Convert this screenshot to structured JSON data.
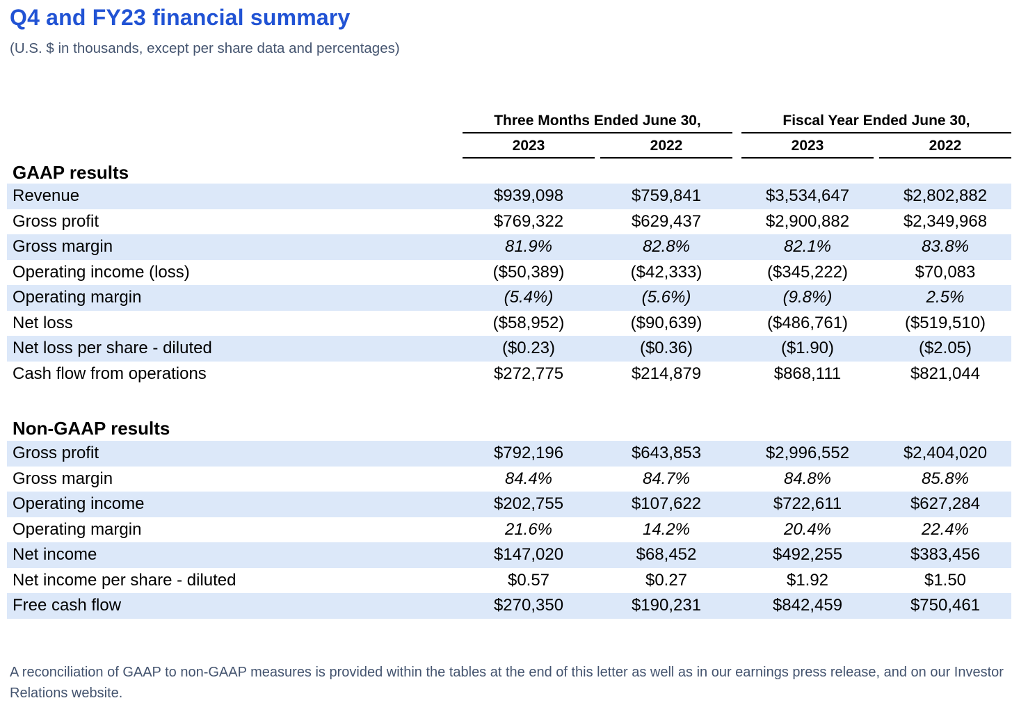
{
  "page": {
    "title": "Q4 and FY23 financial summary",
    "subtitle": "(U.S. $ in thousands, except per share data and percentages)",
    "footnote": "A reconciliation of GAAP to non-GAAP measures is provided within the tables at the end of this letter as well as in our earnings press release, and on our Investor Relations website.",
    "accent_color": "#2153d4",
    "muted_text_color": "#44546f",
    "row_stripe_color": "#dce8f9"
  },
  "table": {
    "column_groups": [
      {
        "label": "Three Months Ended June 30,",
        "years": [
          "2023",
          "2022"
        ]
      },
      {
        "label": "Fiscal Year Ended June 30,",
        "years": [
          "2023",
          "2022"
        ]
      }
    ],
    "sections": [
      {
        "heading": "GAAP results",
        "rows": [
          {
            "label": "Revenue",
            "values": [
              "$939,098",
              "$759,841",
              "$3,534,647",
              "$2,802,882"
            ]
          },
          {
            "label": "Gross profit",
            "values": [
              "$769,322",
              "$629,437",
              "$2,900,882",
              "$2,349,968"
            ]
          },
          {
            "label": "Gross margin",
            "values": [
              "81.9%",
              "82.8%",
              "82.1%",
              "83.8%"
            ]
          },
          {
            "label": "Operating income (loss)",
            "values": [
              "($50,389)",
              "($42,333)",
              "($345,222)",
              "$70,083"
            ]
          },
          {
            "label": "Operating margin",
            "values": [
              "(5.4%)",
              "(5.6%)",
              "(9.8%)",
              "2.5%"
            ]
          },
          {
            "label": "Net loss",
            "values": [
              "($58,952)",
              "($90,639)",
              "($486,761)",
              "($519,510)"
            ]
          },
          {
            "label": "Net loss per share - diluted",
            "values": [
              "($0.23)",
              "($0.36)",
              "($1.90)",
              "($2.05)"
            ]
          },
          {
            "label": "Cash flow from operations",
            "values": [
              "$272,775",
              "$214,879",
              "$868,111",
              "$821,044"
            ]
          }
        ]
      },
      {
        "heading": "Non-GAAP results",
        "rows": [
          {
            "label": "Gross profit",
            "values": [
              "$792,196",
              "$643,853",
              "$2,996,552",
              "$2,404,020"
            ]
          },
          {
            "label": "Gross margin",
            "values": [
              "84.4%",
              "84.7%",
              "84.8%",
              "85.8%"
            ]
          },
          {
            "label": "Operating income",
            "values": [
              "$202,755",
              "$107,622",
              "$722,611",
              "$627,284"
            ]
          },
          {
            "label": "Operating margin",
            "values": [
              "21.6%",
              "14.2%",
              "20.4%",
              "22.4%"
            ]
          },
          {
            "label": "Net income",
            "values": [
              "$147,020",
              "$68,452",
              "$492,255",
              "$383,456"
            ]
          },
          {
            "label": "Net income per share - diluted",
            "values": [
              "$0.57",
              "$0.27",
              "$1.92",
              "$1.50"
            ]
          },
          {
            "label": "Free cash flow",
            "values": [
              "$270,350",
              "$190,231",
              "$842,459",
              "$750,461"
            ]
          }
        ]
      }
    ]
  }
}
